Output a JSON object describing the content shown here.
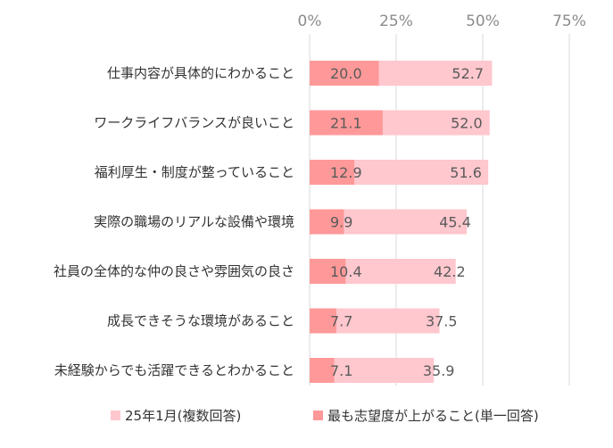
{
  "chart_data": {
    "type": "bar",
    "orientation": "horizontal",
    "title": "",
    "xlabel": "",
    "ylabel": "",
    "xlim": [
      0,
      75
    ],
    "x_ticks": [
      0,
      25,
      50,
      75
    ],
    "x_tick_labels": [
      "0%",
      "25%",
      "50%",
      "75%"
    ],
    "grid": true,
    "legend_position": "bottom",
    "categories": [
      "仕事内容が具体的にわかること",
      "ワークライフバランスが良いこと",
      "福利厚生・制度が整っていること",
      "実際の職場のリアルな設備や環境",
      "社員の全体的な仲の良さや雰囲気の良さ",
      "成長できそうな環境があること",
      "未経験からでも活躍できるとわかること"
    ],
    "series": [
      {
        "name": "25年1月(複数回答)",
        "color": "#ffc7ce",
        "values": [
          52.7,
          52.0,
          51.6,
          45.4,
          42.2,
          37.5,
          35.9
        ],
        "labels": [
          "52.7",
          "52.0",
          "51.6",
          "45.4",
          "42.2",
          "37.5",
          "35.9"
        ]
      },
      {
        "name": "最も志望度が上がること(単一回答)",
        "color": "#ff9999",
        "values": [
          20.0,
          21.1,
          12.9,
          9.9,
          10.4,
          7.7,
          7.1
        ],
        "labels": [
          "20.0",
          "21.1",
          "12.9",
          "9.9",
          "10.4",
          "7.7",
          "7.1"
        ]
      }
    ]
  }
}
